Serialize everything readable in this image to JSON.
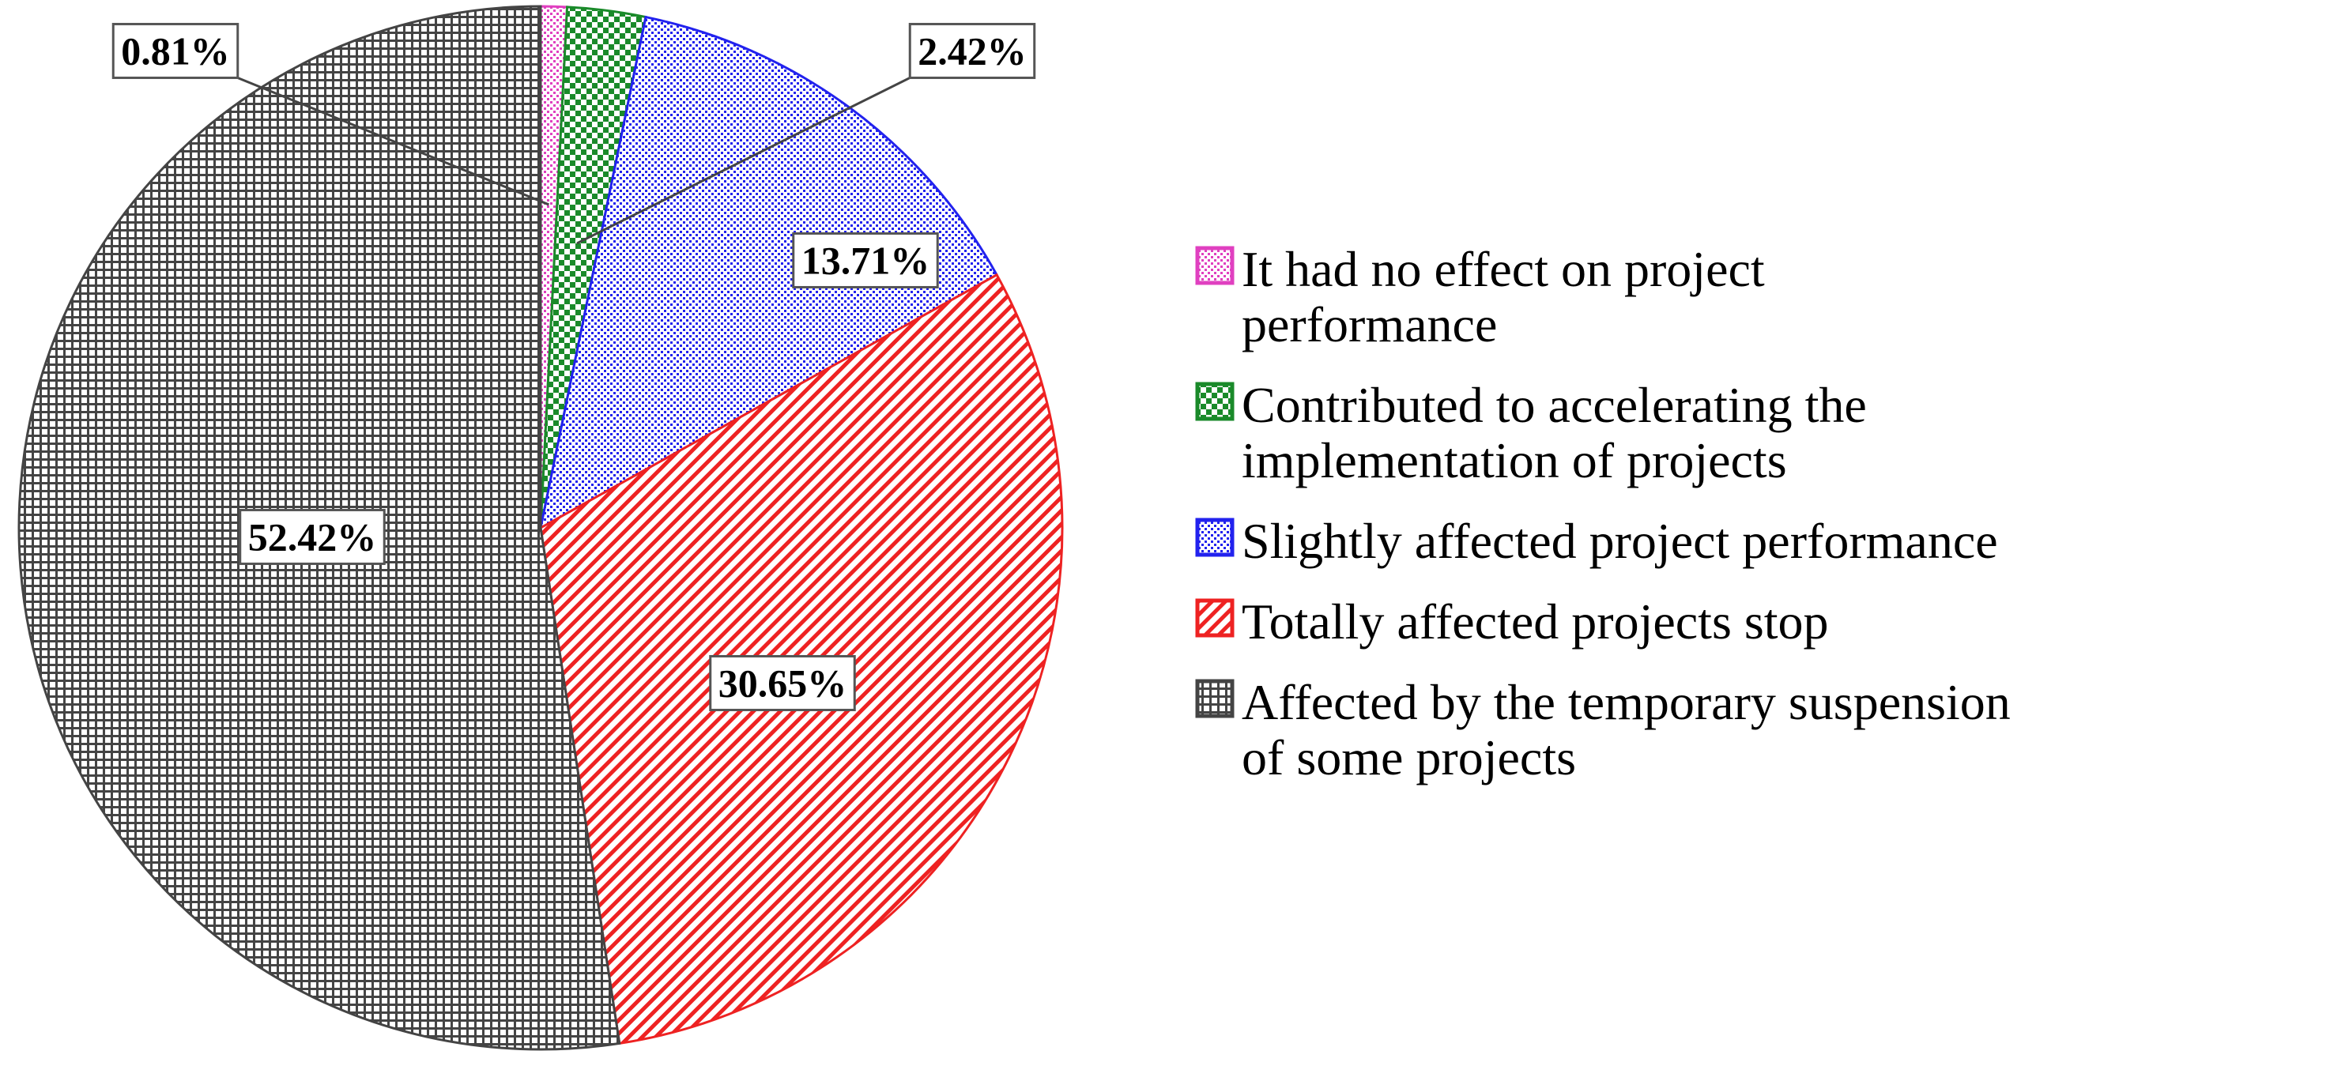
{
  "chart_data": {
    "type": "pie",
    "start_angle_deg": 0,
    "direction": "clockwise",
    "legend_position": "right",
    "slices": [
      {
        "label_lines": [
          "It had no effect on project",
          "performance"
        ],
        "value": 0.81,
        "value_label": "0.81%",
        "color": "#e040c0",
        "pattern": "dots"
      },
      {
        "label_lines": [
          "Contributed to accelerating the",
          "implementation of projects"
        ],
        "value": 2.42,
        "value_label": "2.42%",
        "color": "#1a8a2a",
        "pattern": "checker"
      },
      {
        "label_lines": [
          "Slightly affected project performance"
        ],
        "value": 13.71,
        "value_label": "13.71%",
        "color": "#2222ee",
        "pattern": "dots"
      },
      {
        "label_lines": [
          "Totally affected projects stop"
        ],
        "value": 30.65,
        "value_label": "30.65%",
        "color": "#ee2222",
        "pattern": "diagonal"
      },
      {
        "label_lines": [
          "Affected by the temporary suspension",
          "of some projects"
        ],
        "value": 52.42,
        "value_label": "52.42%",
        "color": "#444444",
        "pattern": "grid"
      }
    ]
  }
}
